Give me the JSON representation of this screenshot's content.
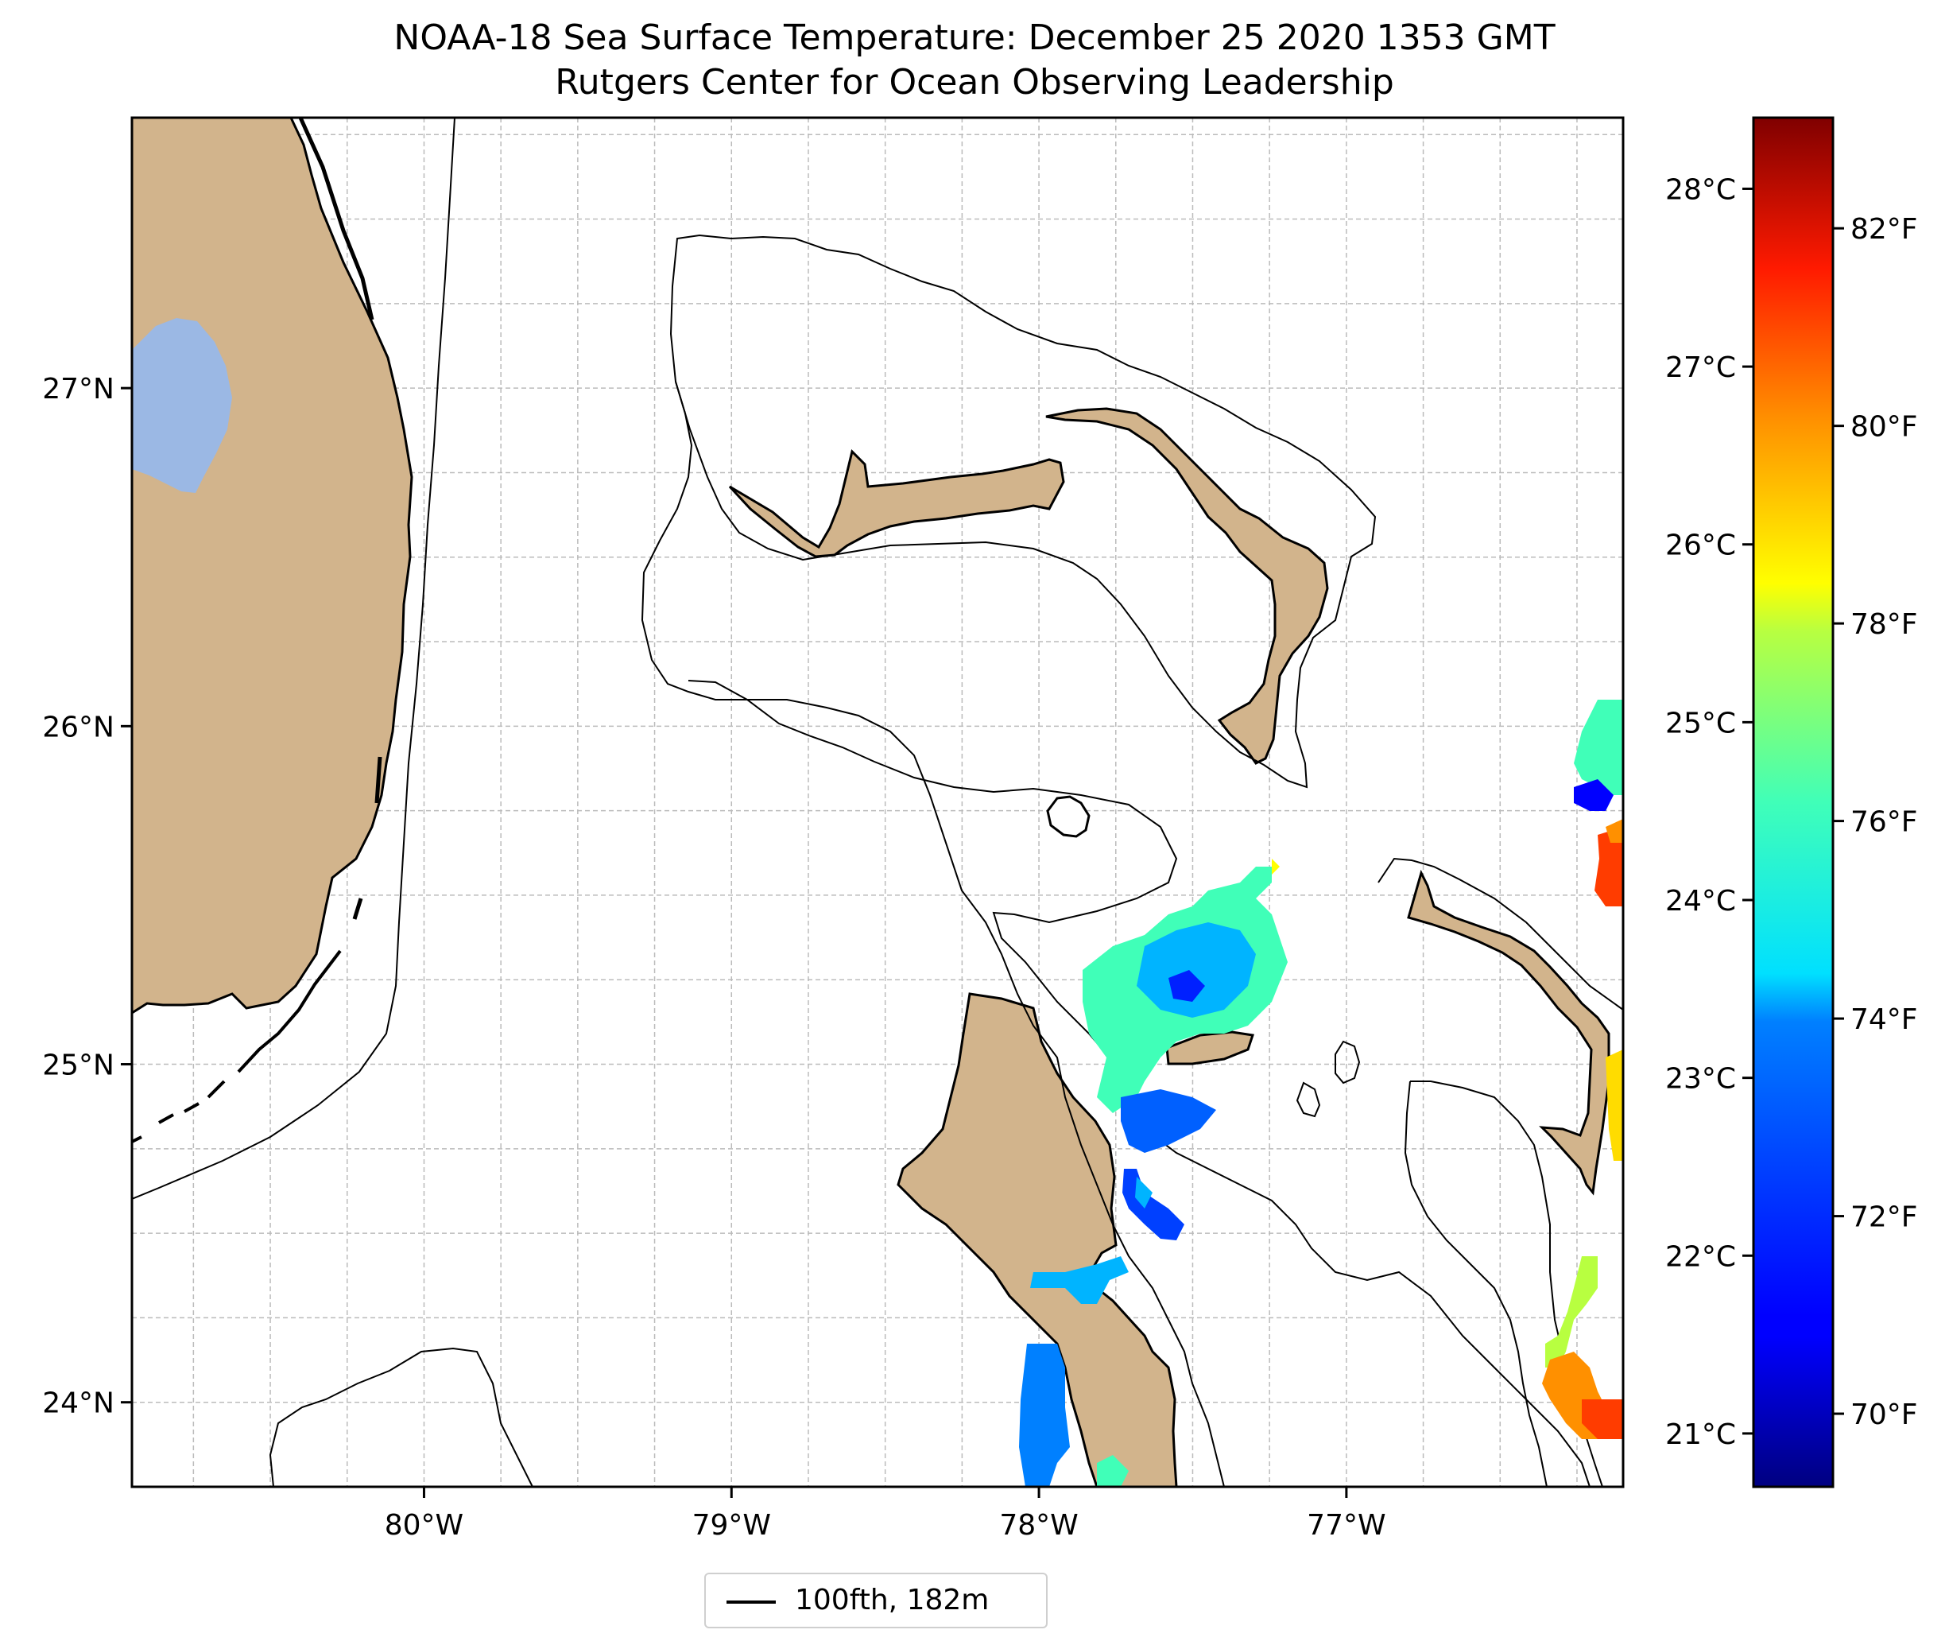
{
  "title": {
    "line1": "NOAA-18 Sea Surface Temperature: December 25 2020 1353 GMT",
    "line2": "Rutgers Center for Ocean Observing Leadership"
  },
  "map": {
    "lon_range": [
      -80.95,
      -76.1
    ],
    "lat_range": [
      23.75,
      27.8
    ],
    "grid": true,
    "gridline_style": "dashed-gray",
    "lon_ticks": [
      {
        "value": -80,
        "label": "80°W"
      },
      {
        "value": -79,
        "label": "79°W"
      },
      {
        "value": -78,
        "label": "78°W"
      },
      {
        "value": -77,
        "label": "77°W"
      }
    ],
    "lat_ticks": [
      {
        "value": 24,
        "label": "24°N"
      },
      {
        "value": 25,
        "label": "25°N"
      },
      {
        "value": 26,
        "label": "26°N"
      },
      {
        "value": 27,
        "label": "27°N"
      }
    ],
    "colors": {
      "land": "#d2b48c",
      "lake": "#9bb8e4",
      "ocean": "#ffffff",
      "coastline": "#000000",
      "isobath": "#000000"
    }
  },
  "colorbar": {
    "colormap": "jet",
    "range_c": [
      20.7,
      28.4
    ],
    "celsius_ticks": [
      {
        "value": 21,
        "label": "21°C"
      },
      {
        "value": 22,
        "label": "22°C"
      },
      {
        "value": 23,
        "label": "23°C"
      },
      {
        "value": 24,
        "label": "24°C"
      },
      {
        "value": 25,
        "label": "25°C"
      },
      {
        "value": 26,
        "label": "26°C"
      },
      {
        "value": 27,
        "label": "27°C"
      },
      {
        "value": 28,
        "label": "28°C"
      }
    ],
    "fahrenheit_ticks": [
      {
        "value": 70,
        "label": "70°F"
      },
      {
        "value": 72,
        "label": "72°F"
      },
      {
        "value": 74,
        "label": "74°F"
      },
      {
        "value": 76,
        "label": "76°F"
      },
      {
        "value": 78,
        "label": "78°F"
      },
      {
        "value": 80,
        "label": "80°F"
      },
      {
        "value": 82,
        "label": "82°F"
      }
    ]
  },
  "legend": {
    "label": "100fth, 182m",
    "placement": "bottom-center"
  }
}
